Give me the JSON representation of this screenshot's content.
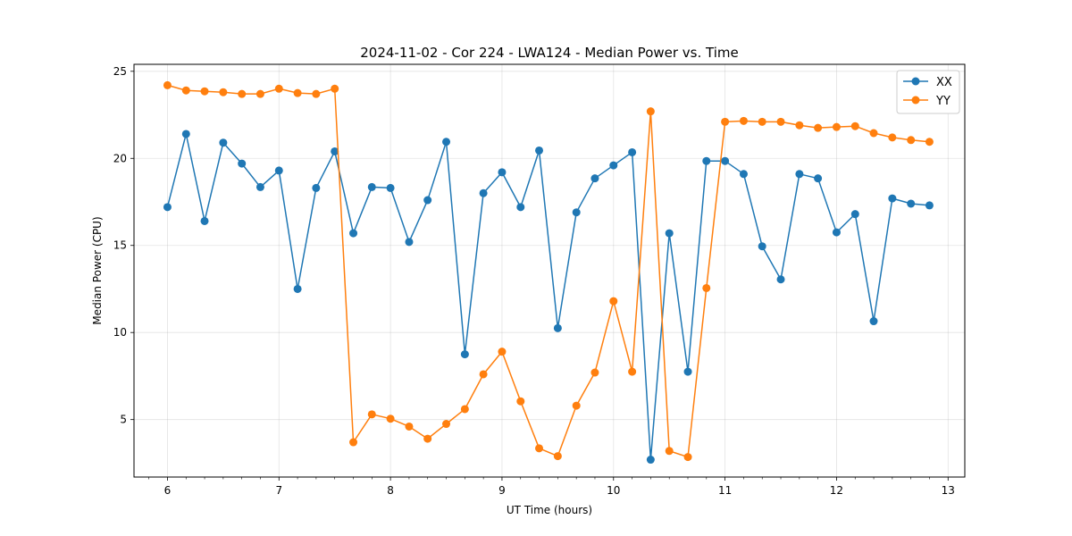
{
  "chart_data": {
    "type": "line",
    "title": "2024-11-02 - Cor 224 - LWA124 - Median Power vs. Time",
    "xlabel": "UT Time (hours)",
    "ylabel": "Median Power (CPU)",
    "xlim": [
      5.7,
      13.15
    ],
    "ylim": [
      1.7,
      25.4
    ],
    "xticks": [
      6,
      7,
      8,
      9,
      10,
      11,
      12,
      13
    ],
    "yticks": [
      5,
      10,
      15,
      20,
      25
    ],
    "grid": true,
    "legend_position": "top-right",
    "x": [
      6.0,
      6.167,
      6.333,
      6.5,
      6.667,
      6.833,
      7.0,
      7.167,
      7.333,
      7.5,
      7.667,
      7.833,
      8.0,
      8.167,
      8.333,
      8.5,
      8.667,
      8.833,
      9.0,
      9.167,
      9.333,
      9.5,
      9.667,
      9.833,
      10.0,
      10.167,
      10.333,
      10.5,
      10.667,
      10.833,
      11.0,
      11.167,
      11.333,
      11.5,
      11.667,
      11.833,
      12.0,
      12.167,
      12.333,
      12.5,
      12.667,
      12.833
    ],
    "series": [
      {
        "name": "XX",
        "color": "#1f77b4",
        "values": [
          17.2,
          21.4,
          16.4,
          20.9,
          19.7,
          18.35,
          19.3,
          12.5,
          18.3,
          20.4,
          15.7,
          18.35,
          18.3,
          15.2,
          17.6,
          20.95,
          8.75,
          18.0,
          19.2,
          17.2,
          20.45,
          10.25,
          16.9,
          18.85,
          19.6,
          20.35,
          2.7,
          15.7,
          7.75,
          19.85,
          19.85,
          19.1,
          14.95,
          13.05,
          19.1,
          18.85,
          15.75,
          16.8,
          10.65,
          17.7,
          17.4,
          17.3
        ]
      },
      {
        "name": "YY",
        "color": "#ff7f0e",
        "values": [
          24.2,
          23.9,
          23.85,
          23.8,
          23.7,
          23.7,
          24.0,
          23.75,
          23.7,
          24.0,
          3.7,
          5.3,
          5.05,
          4.6,
          3.9,
          4.75,
          5.6,
          7.6,
          8.9,
          6.05,
          3.35,
          2.9,
          5.8,
          7.7,
          11.8,
          7.75,
          22.7,
          3.2,
          2.85,
          12.55,
          22.1,
          22.15,
          22.1,
          22.1,
          21.9,
          21.75,
          21.8,
          21.85,
          21.45,
          21.2,
          21.05,
          20.95
        ]
      }
    ]
  }
}
